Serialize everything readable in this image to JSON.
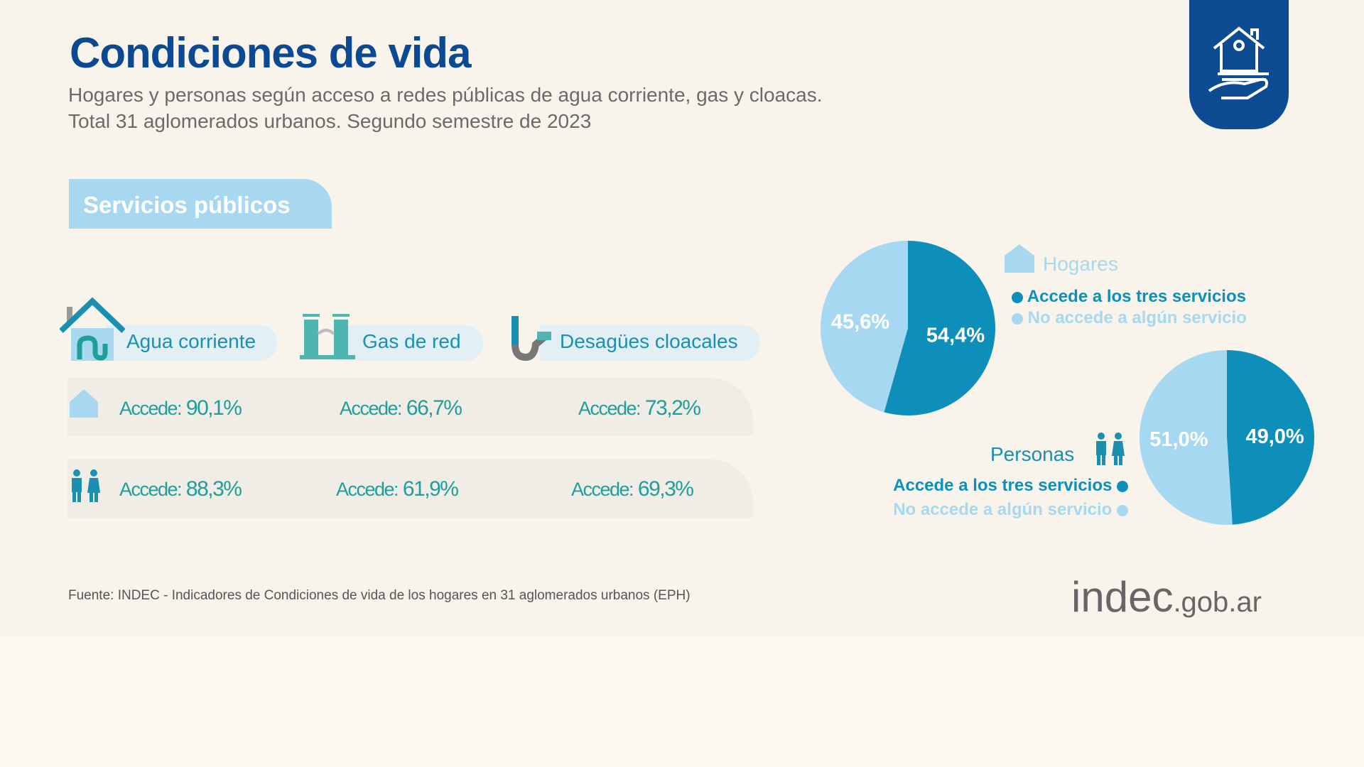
{
  "title": "Condiciones de vida",
  "subtitle": [
    "Hogares y personas según acceso a redes públicas de agua corriente, gas y cloacas.",
    "Total 31 aglomerados urbanos. Segundo semestre de 2023"
  ],
  "section": "Servicios públicos",
  "services": [
    "Agua corriente",
    "Gas de red",
    "Desagües cloacales"
  ],
  "rows": [
    {
      "name": "Hogares",
      "icon": "house-icon",
      "values": [
        {
          "label": "Accede:",
          "value": "90,1%"
        },
        {
          "label": "Accede:",
          "value": "66,7%"
        },
        {
          "label": "Accede:",
          "value": "73,2%"
        }
      ]
    },
    {
      "name": "Personas",
      "icon": "people-icon",
      "values": [
        {
          "label": "Accede:",
          "value": "88,3%"
        },
        {
          "label": "Accede:",
          "value": "61,9%"
        },
        {
          "label": "Accede:",
          "value": "69,3%"
        }
      ]
    }
  ],
  "legend": {
    "hogares": "Hogares",
    "personas": "Personas",
    "accede": "Accede a los tres servicios",
    "no_accede": "No accede a algún servicio"
  },
  "colors": {
    "dark": "#0e8fba",
    "light": "#a6d8f2"
  },
  "chart_data": [
    {
      "type": "pie",
      "title": "Hogares",
      "slices": [
        {
          "label": "Accede a los tres servicios",
          "value": 54.4,
          "text": "54,4%"
        },
        {
          "label": "No accede a algún servicio",
          "value": 45.6,
          "text": "45,6%"
        }
      ]
    },
    {
      "type": "pie",
      "title": "Personas",
      "slices": [
        {
          "label": "Accede a los tres servicios",
          "value": 49.0,
          "text": "49,0%"
        },
        {
          "label": "No accede a algún servicio",
          "value": 51.0,
          "text": "51,0%"
        }
      ]
    }
  ],
  "source": "Fuente: INDEC - Indicadores de Condiciones de vida de los hogares en 31 aglomerados urbanos (EPH)",
  "logo": {
    "main": "indec",
    "suffix": ".gob.ar"
  }
}
